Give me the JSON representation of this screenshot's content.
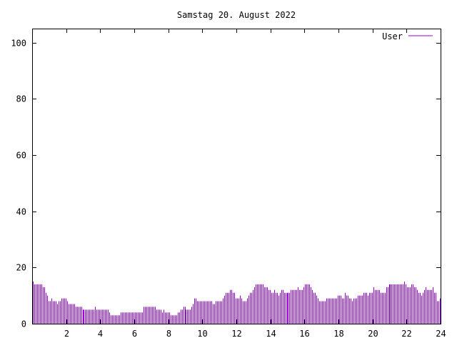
{
  "chart_data": {
    "type": "bar",
    "title": "Samstag 20. August 2022",
    "xlabel": "",
    "ylabel": "",
    "xlim": [
      0,
      24
    ],
    "ylim": [
      0,
      105
    ],
    "x_ticks": [
      2,
      4,
      6,
      8,
      10,
      12,
      14,
      16,
      18,
      20,
      22,
      24
    ],
    "y_ticks": [
      0,
      20,
      40,
      60,
      80,
      100
    ],
    "x_tick_labels": [
      "2",
      "4",
      "6",
      "8",
      "10",
      "12",
      "14",
      "16",
      "18",
      "20",
      "22",
      "24"
    ],
    "y_tick_labels": [
      "0",
      "20",
      "40",
      "60",
      "80",
      "100"
    ],
    "grid": false,
    "legend_position": "top-right",
    "series": [
      {
        "name": "User",
        "color": "#9400d3",
        "interval_minutes": 5,
        "values": [
          15,
          14,
          14,
          14,
          14,
          14,
          14,
          13,
          13,
          11,
          10,
          8,
          8,
          9,
          8,
          8,
          8,
          7,
          8,
          8,
          9,
          9,
          9,
          9,
          8,
          7,
          7,
          7,
          7,
          7,
          6,
          6,
          6,
          6,
          6,
          5,
          5,
          5,
          5,
          5,
          5,
          5,
          5,
          5,
          6,
          5,
          5,
          5,
          5,
          5,
          5,
          5,
          5,
          5,
          4,
          3,
          3,
          3,
          3,
          3,
          3,
          3,
          4,
          4,
          4,
          4,
          4,
          4,
          4,
          4,
          4,
          4,
          4,
          4,
          4,
          4,
          4,
          4,
          6,
          6,
          6,
          6,
          6,
          6,
          6,
          6,
          6,
          5,
          5,
          5,
          5,
          4,
          5,
          4,
          4,
          4,
          4,
          3,
          3,
          3,
          3,
          3,
          4,
          4,
          5,
          5,
          6,
          6,
          5,
          5,
          5,
          5,
          6,
          7,
          9,
          9,
          8,
          8,
          8,
          8,
          8,
          8,
          8,
          8,
          8,
          8,
          8,
          7,
          7,
          8,
          8,
          8,
          8,
          8,
          9,
          10,
          11,
          11,
          11,
          12,
          12,
          11,
          11,
          9,
          9,
          9,
          10,
          9,
          8,
          8,
          8,
          9,
          10,
          11,
          11,
          12,
          13,
          14,
          14,
          14,
          14,
          14,
          14,
          13,
          13,
          13,
          12,
          12,
          11,
          11,
          12,
          11,
          11,
          10,
          11,
          12,
          12,
          11,
          11,
          11,
          11,
          11,
          12,
          12,
          12,
          12,
          12,
          13,
          12,
          12,
          12,
          13,
          14,
          14,
          14,
          14,
          13,
          12,
          11,
          11,
          10,
          9,
          8,
          8,
          8,
          8,
          8,
          9,
          9,
          9,
          9,
          9,
          9,
          9,
          9,
          10,
          10,
          10,
          9,
          9,
          11,
          10,
          10,
          9,
          9,
          8,
          9,
          9,
          9,
          10,
          10,
          10,
          10,
          11,
          11,
          11,
          10,
          11,
          11,
          11,
          13,
          12,
          12,
          12,
          12,
          11,
          11,
          11,
          11,
          13,
          13,
          14,
          14,
          14,
          14,
          14,
          14,
          14,
          14,
          14,
          14,
          14,
          15,
          14,
          13,
          13,
          13,
          14,
          14,
          13,
          13,
          12,
          11,
          11,
          10,
          11,
          12,
          13,
          12,
          12,
          12,
          12,
          13,
          11,
          11,
          8,
          8,
          9
        ]
      }
    ]
  }
}
